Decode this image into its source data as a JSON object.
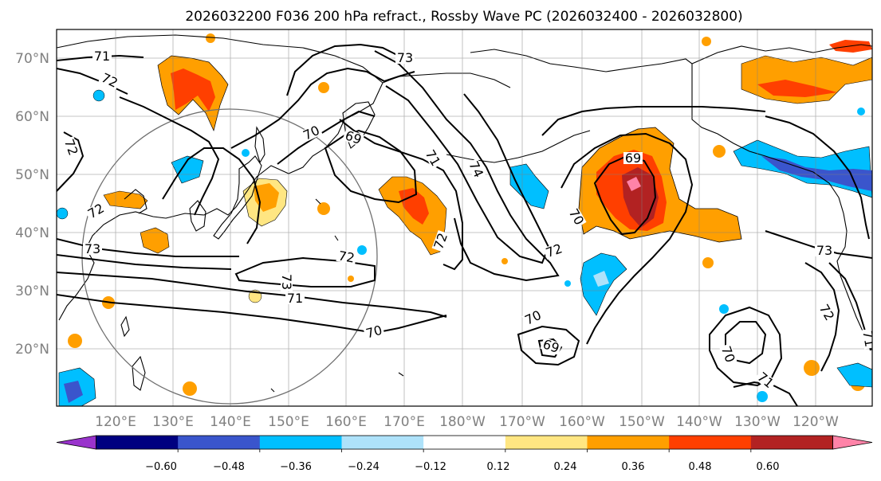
{
  "title": "2026032200 F036 200 hPa refract., Rossby Wave PC (2026032400 - 2026032800)",
  "axes": {
    "lat_labels": [
      "70°N",
      "60°N",
      "50°N",
      "40°N",
      "30°N",
      "20°N"
    ],
    "lon_labels": [
      "120°E",
      "130°E",
      "140°E",
      "150°E",
      "160°E",
      "170°E",
      "180°W",
      "170°W",
      "160°W",
      "150°W",
      "140°W",
      "130°W",
      "120°W"
    ]
  },
  "colorbar": {
    "colors": [
      "#9933cc",
      "#000080",
      "#3a55cc",
      "#00bfff",
      "#aee2fa",
      "#ffffff",
      "#ffe682",
      "#ff9f00",
      "#ff3f00",
      "#b22222",
      "#ff83a8"
    ],
    "labels": [
      "−0.60",
      "−0.48",
      "−0.36",
      "−0.24",
      "−0.12",
      "0.12",
      "0.24",
      "0.36",
      "0.48",
      "0.60"
    ]
  },
  "contour_labels": [
    {
      "name": "contour-label-71-nw",
      "text": "71"
    },
    {
      "name": "contour-label-72-nw",
      "text": "72"
    },
    {
      "name": "contour-label-73-north",
      "text": "73"
    },
    {
      "name": "contour-label-70-japan",
      "text": "70"
    },
    {
      "name": "contour-label-69-kamchatka",
      "text": "69"
    },
    {
      "name": "contour-label-71-dateline",
      "text": "71"
    },
    {
      "name": "contour-label-74-dateline",
      "text": "74"
    },
    {
      "name": "contour-label-72-west",
      "text": "72"
    },
    {
      "name": "contour-label-72-china",
      "text": "72"
    },
    {
      "name": "contour-label-73-china",
      "text": "73"
    },
    {
      "name": "contour-label-72-central",
      "text": "72"
    },
    {
      "name": "contour-label-72-southcentral",
      "text": "72"
    },
    {
      "name": "contour-label-73-pacific",
      "text": "73"
    },
    {
      "name": "contour-label-71-pacific",
      "text": "71"
    },
    {
      "name": "contour-label-70-pacific",
      "text": "70"
    },
    {
      "name": "contour-label-72-midpac",
      "text": "72"
    },
    {
      "name": "contour-label-70-midpac",
      "text": "70"
    },
    {
      "name": "contour-label-69-midpac",
      "text": "69"
    },
    {
      "name": "contour-label-70-gulf",
      "text": "70"
    },
    {
      "name": "contour-label-69-gulf",
      "text": "69"
    },
    {
      "name": "contour-label-73-coast",
      "text": "73"
    },
    {
      "name": "contour-label-72-coast",
      "text": "72"
    },
    {
      "name": "contour-label-71-coast",
      "text": "71"
    },
    {
      "name": "contour-label-71-south",
      "text": "71"
    },
    {
      "name": "contour-label-70-south",
      "text": "70"
    }
  ]
}
